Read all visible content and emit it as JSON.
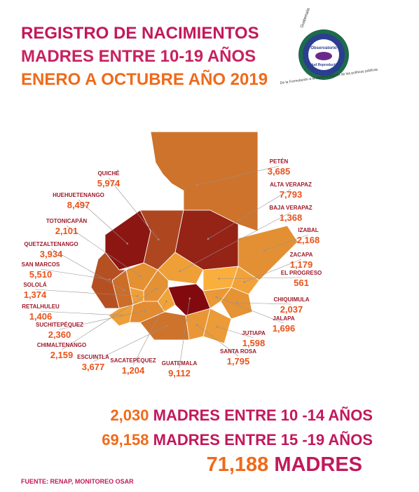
{
  "header": {
    "title": [
      "REGISTRO DE NACIMIENTOS",
      "MADRES ENTRE 10-19 AÑOS",
      "ENERO A OCTUBRE AÑO 2019"
    ]
  },
  "logo": {
    "country": "Guatemala",
    "name": "Observatorio",
    "subname": "Salud Reproductiva",
    "tagline": "De la Formulación a la implementación de las políticas públicas"
  },
  "departments": [
    {
      "name": "PETÉN",
      "value": 3685,
      "value_label": "3,685"
    },
    {
      "name": "HUEHUETENANGO",
      "value": 8497,
      "value_label": "8,497"
    },
    {
      "name": "QUICHÉ",
      "value": 5974,
      "value_label": "5,974"
    },
    {
      "name": "ALTA VERAPAZ",
      "value": 7793,
      "value_label": "7,793"
    },
    {
      "name": "IZABAL",
      "value": 2168,
      "value_label": "2,168"
    },
    {
      "name": "BAJA VERAPAZ",
      "value": 1368,
      "value_label": "1,368"
    },
    {
      "name": "EL PROGRESO",
      "value": 561,
      "value_label": "561"
    },
    {
      "name": "ZACAPA",
      "value": 1179,
      "value_label": "1,179"
    },
    {
      "name": "CHIQUIMULA",
      "value": 2037,
      "value_label": "2,037"
    },
    {
      "name": "JALAPA",
      "value": 1696,
      "value_label": "1,696"
    },
    {
      "name": "JUTIAPA",
      "value": 1598,
      "value_label": "1,598"
    },
    {
      "name": "SANTA ROSA",
      "value": 1795,
      "value_label": "1,795"
    },
    {
      "name": "GUATEMALA",
      "value": 9112,
      "value_label": "9,112"
    },
    {
      "name": "SACATEPÉQUEZ",
      "value": 1204,
      "value_label": "1,204"
    },
    {
      "name": "ESCUINTLA",
      "value": 3677,
      "value_label": "3,677"
    },
    {
      "name": "CHIMALTENANGO",
      "value": 2159,
      "value_label": "2,159"
    },
    {
      "name": "SOLOLÁ",
      "value": 1374,
      "value_label": "1,374"
    },
    {
      "name": "TOTONICAPÁN",
      "value": 2101,
      "value_label": "2,101"
    },
    {
      "name": "QUETZALTENANGO",
      "value": 3934,
      "value_label": "3,934"
    },
    {
      "name": "SAN MARCOS",
      "value": 5510,
      "value_label": "5,510"
    },
    {
      "name": "SUCHITEPÉQUEZ",
      "value": 2360,
      "value_label": "2,360"
    },
    {
      "name": "RETALHULEU",
      "value": 1406,
      "value_label": "1,406"
    }
  ],
  "summary": [
    {
      "value": 2030,
      "value_label": "2,030",
      "text": "MADRES ENTRE 10 -14 AÑOS"
    },
    {
      "value": 69158,
      "value_label": "69,158",
      "text": "MADRES ENTRE 15 -19 AÑOS"
    },
    {
      "value": 71188,
      "value_label": "71,188",
      "text": "MADRES"
    }
  ],
  "source": "FUENTE: RENAP, MONITOREO OSAR"
}
